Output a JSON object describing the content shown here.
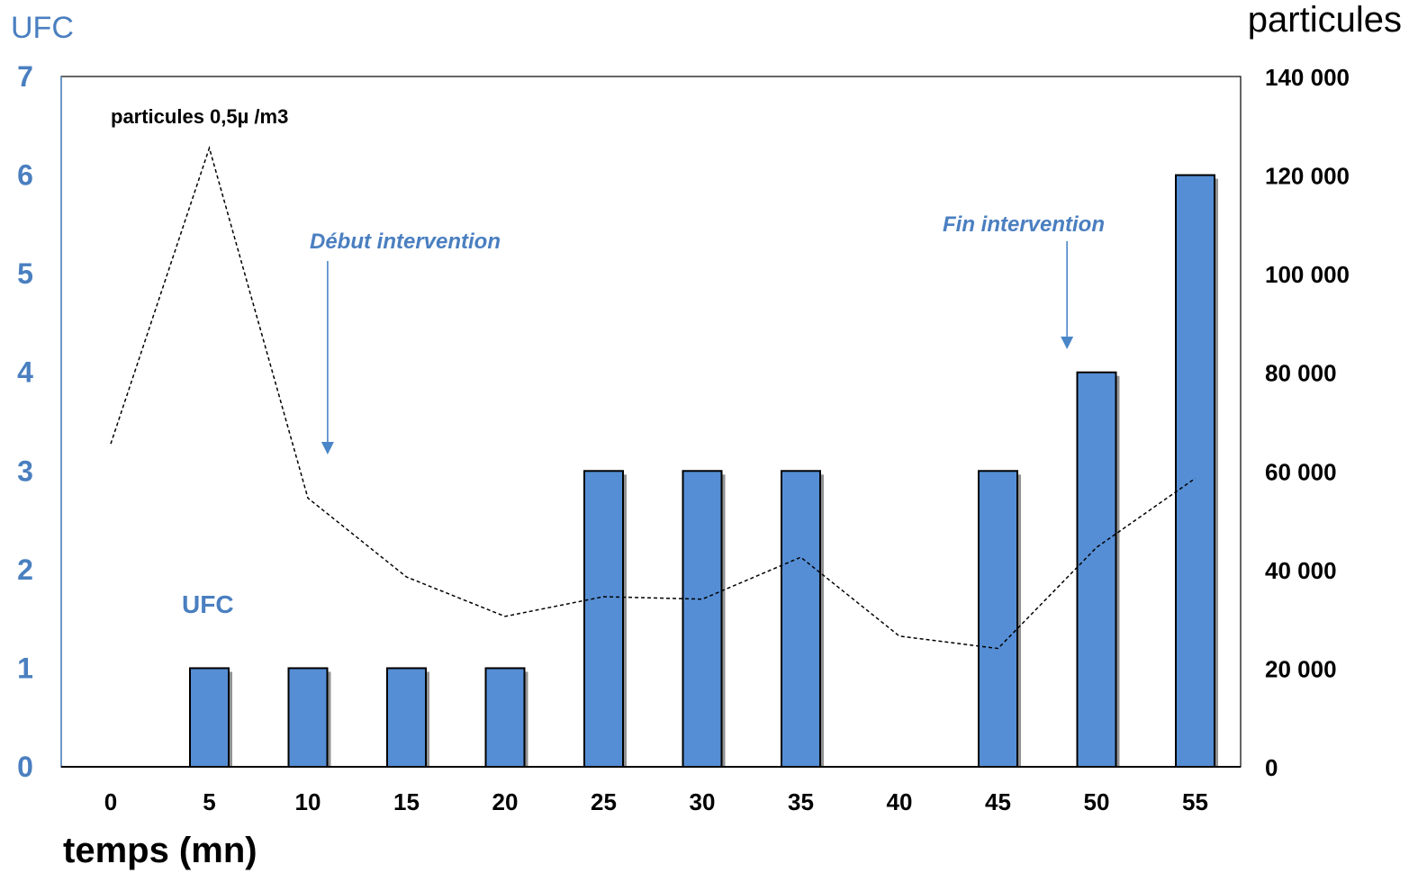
{
  "chart_data": {
    "type": "bar",
    "title": "",
    "xlabel": "temps (mn)",
    "ylabel": "UFC",
    "y2label": "particules",
    "categories": [
      "0",
      "5",
      "10",
      "15",
      "20",
      "25",
      "30",
      "35",
      "40",
      "45",
      "50",
      "55"
    ],
    "ylim": [
      0,
      7
    ],
    "y_ticks": [
      "0",
      "1",
      "2",
      "3",
      "4",
      "5",
      "6",
      "7"
    ],
    "y2lim": [
      0,
      140000
    ],
    "y2_ticks": [
      "0",
      "20 000",
      "40 000",
      "60 000",
      "80 000",
      "100 000",
      "120 000",
      "140 000"
    ],
    "grid": false,
    "legend": "none",
    "series": [
      {
        "kind": "bar",
        "axis": "left",
        "color": "#558ed5",
        "values": [
          0,
          1,
          1,
          1,
          1,
          3,
          3,
          3,
          0,
          3,
          4,
          6
        ]
      },
      {
        "kind": "line",
        "style": "dashed",
        "axis": "right",
        "color": "#000000",
        "values": [
          65500,
          125500,
          54500,
          38500,
          30500,
          34500,
          34000,
          42500,
          26500,
          24000,
          44500,
          58500
        ]
      }
    ],
    "annotations": {
      "line_label": "particules 0,5µ /m3",
      "bar_label": "UFC",
      "events": [
        {
          "text": "Début intervention",
          "x": 11
        },
        {
          "text": "Fin intervention",
          "x": 48.5
        }
      ]
    },
    "colors": {
      "bar": "#558ed5",
      "axis_left": "#4a7fc0",
      "event": "#4a86c8",
      "line": "#000000"
    }
  }
}
